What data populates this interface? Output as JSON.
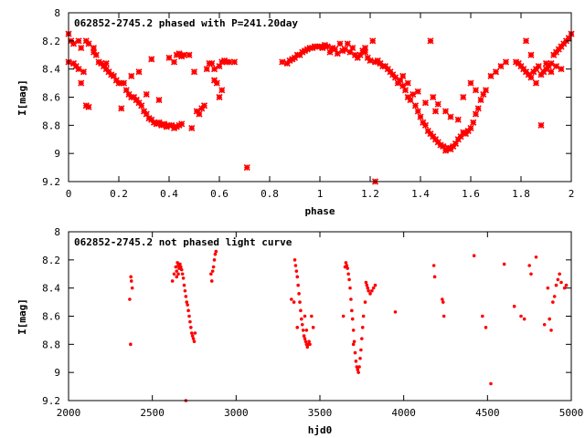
{
  "chart_data": [
    {
      "type": "scatter",
      "title": "062852-2745.2 phased with P=241.20day",
      "xlabel": "phase",
      "ylabel": "I[mag]",
      "xlim": [
        0,
        2
      ],
      "ylim": [
        9.2,
        8.0
      ],
      "y_inverted": true,
      "grid": false,
      "x_ticks": [
        "0",
        "0.2",
        "0.4",
        "0.6",
        "0.8",
        "1",
        "1.2",
        "1.4",
        "1.6",
        "1.8",
        "2"
      ],
      "y_ticks": [
        "8",
        "8.2",
        "8.4",
        "8.6",
        "8.8",
        "9",
        "9.2"
      ],
      "marker_color": "#ff0000",
      "marker": "star",
      "points": [
        [
          0.0,
          8.15
        ],
        [
          0.0,
          8.35
        ],
        [
          0.01,
          8.2
        ],
        [
          0.02,
          8.22
        ],
        [
          0.02,
          8.36
        ],
        [
          0.03,
          8.38
        ],
        [
          0.04,
          8.2
        ],
        [
          0.04,
          8.4
        ],
        [
          0.05,
          8.25
        ],
        [
          0.05,
          8.5
        ],
        [
          0.06,
          8.42
        ],
        [
          0.07,
          8.2
        ],
        [
          0.07,
          8.66
        ],
        [
          0.08,
          8.22
        ],
        [
          0.08,
          8.67
        ],
        [
          0.1,
          8.25
        ],
        [
          0.1,
          8.28
        ],
        [
          0.11,
          8.3
        ],
        [
          0.12,
          8.35
        ],
        [
          0.13,
          8.36
        ],
        [
          0.14,
          8.38
        ],
        [
          0.15,
          8.4
        ],
        [
          0.16,
          8.42
        ],
        [
          0.17,
          8.44
        ],
        [
          0.18,
          8.45
        ],
        [
          0.19,
          8.48
        ],
        [
          0.2,
          8.5
        ],
        [
          0.21,
          8.5
        ],
        [
          0.21,
          8.68
        ],
        [
          0.22,
          8.5
        ],
        [
          0.23,
          8.55
        ],
        [
          0.24,
          8.58
        ],
        [
          0.25,
          8.6
        ],
        [
          0.26,
          8.6
        ],
        [
          0.27,
          8.62
        ],
        [
          0.28,
          8.64
        ],
        [
          0.29,
          8.66
        ],
        [
          0.3,
          8.7
        ],
        [
          0.31,
          8.72
        ],
        [
          0.32,
          8.75
        ],
        [
          0.33,
          8.76
        ],
        [
          0.34,
          8.78
        ],
        [
          0.33,
          8.33
        ],
        [
          0.35,
          8.79
        ],
        [
          0.36,
          8.78
        ],
        [
          0.37,
          8.8
        ],
        [
          0.38,
          8.79
        ],
        [
          0.39,
          8.81
        ],
        [
          0.4,
          8.8
        ],
        [
          0.41,
          8.8
        ],
        [
          0.42,
          8.82
        ],
        [
          0.43,
          8.81
        ],
        [
          0.44,
          8.8
        ],
        [
          0.45,
          8.79
        ],
        [
          0.4,
          8.32
        ],
        [
          0.42,
          8.35
        ],
        [
          0.43,
          8.3
        ],
        [
          0.44,
          8.29
        ],
        [
          0.45,
          8.31
        ],
        [
          0.46,
          8.3
        ],
        [
          0.48,
          8.3
        ],
        [
          0.49,
          8.82
        ],
        [
          0.5,
          8.42
        ],
        [
          0.51,
          8.7
        ],
        [
          0.52,
          8.72
        ],
        [
          0.53,
          8.68
        ],
        [
          0.54,
          8.66
        ],
        [
          0.55,
          8.4
        ],
        [
          0.56,
          8.36
        ],
        [
          0.58,
          8.4
        ],
        [
          0.59,
          8.5
        ],
        [
          0.6,
          8.38
        ],
        [
          0.6,
          8.6
        ],
        [
          0.61,
          8.55
        ],
        [
          0.61,
          8.35
        ],
        [
          0.62,
          8.34
        ],
        [
          0.63,
          8.35
        ],
        [
          0.64,
          8.35
        ],
        [
          0.66,
          8.35
        ],
        [
          0.15,
          8.36
        ],
        [
          0.28,
          8.42
        ],
        [
          0.25,
          8.45
        ],
        [
          0.27,
          8.62
        ],
        [
          0.31,
          8.58
        ],
        [
          0.36,
          8.62
        ],
        [
          0.57,
          8.36
        ],
        [
          0.58,
          8.48
        ],
        [
          0.71,
          9.1
        ],
        [
          0.85,
          8.35
        ],
        [
          0.87,
          8.36
        ],
        [
          0.88,
          8.34
        ],
        [
          0.89,
          8.33
        ],
        [
          0.9,
          8.32
        ],
        [
          0.91,
          8.3
        ],
        [
          0.92,
          8.3
        ],
        [
          0.93,
          8.28
        ],
        [
          0.94,
          8.27
        ],
        [
          0.95,
          8.26
        ],
        [
          0.96,
          8.25
        ],
        [
          0.97,
          8.25
        ],
        [
          0.98,
          8.24
        ],
        [
          0.99,
          8.24
        ],
        [
          1.0,
          8.24
        ],
        [
          1.01,
          8.25
        ],
        [
          1.02,
          8.23
        ],
        [
          1.03,
          8.24
        ],
        [
          1.04,
          8.28
        ],
        [
          1.05,
          8.25
        ],
        [
          1.06,
          8.26
        ],
        [
          1.08,
          8.22
        ],
        [
          1.09,
          8.27
        ],
        [
          1.1,
          8.26
        ],
        [
          1.11,
          8.22
        ],
        [
          1.12,
          8.28
        ],
        [
          1.13,
          8.25
        ],
        [
          1.14,
          8.3
        ],
        [
          1.15,
          8.32
        ],
        [
          1.16,
          8.3
        ],
        [
          1.17,
          8.27
        ],
        [
          1.18,
          8.28
        ],
        [
          1.19,
          8.32
        ],
        [
          1.2,
          8.34
        ],
        [
          1.21,
          8.2
        ],
        [
          1.22,
          8.35
        ],
        [
          1.23,
          8.34
        ],
        [
          1.24,
          8.36
        ],
        [
          1.25,
          8.38
        ],
        [
          1.26,
          8.38
        ],
        [
          1.27,
          8.4
        ],
        [
          1.28,
          8.42
        ],
        [
          1.29,
          8.44
        ],
        [
          1.3,
          8.46
        ],
        [
          1.31,
          8.5
        ],
        [
          1.32,
          8.48
        ],
        [
          1.33,
          8.52
        ],
        [
          1.34,
          8.55
        ],
        [
          1.35,
          8.6
        ],
        [
          1.36,
          8.62
        ],
        [
          1.37,
          8.58
        ],
        [
          1.38,
          8.66
        ],
        [
          1.39,
          8.7
        ],
        [
          1.4,
          8.74
        ],
        [
          1.41,
          8.78
        ],
        [
          1.42,
          8.8
        ],
        [
          1.43,
          8.84
        ],
        [
          1.44,
          8.86
        ],
        [
          1.45,
          8.88
        ],
        [
          1.46,
          8.9
        ],
        [
          1.47,
          8.92
        ],
        [
          1.48,
          8.94
        ],
        [
          1.49,
          8.95
        ],
        [
          1.5,
          8.98
        ],
        [
          1.51,
          8.96
        ],
        [
          1.52,
          8.97
        ],
        [
          1.53,
          8.95
        ],
        [
          1.54,
          8.93
        ],
        [
          1.55,
          8.9
        ],
        [
          1.56,
          8.88
        ],
        [
          1.57,
          8.85
        ],
        [
          1.58,
          8.86
        ],
        [
          1.59,
          8.84
        ],
        [
          1.6,
          8.82
        ],
        [
          1.61,
          8.78
        ],
        [
          1.62,
          8.72
        ],
        [
          1.63,
          8.68
        ],
        [
          1.64,
          8.62
        ],
        [
          1.65,
          8.58
        ],
        [
          1.66,
          8.55
        ],
        [
          1.68,
          8.45
        ],
        [
          1.7,
          8.42
        ],
        [
          1.72,
          8.38
        ],
        [
          1.74,
          8.35
        ],
        [
          1.45,
          8.6
        ],
        [
          1.47,
          8.65
        ],
        [
          1.5,
          8.7
        ],
        [
          1.52,
          8.74
        ],
        [
          1.55,
          8.76
        ],
        [
          1.57,
          8.6
        ],
        [
          1.6,
          8.5
        ],
        [
          1.62,
          8.55
        ],
        [
          1.44,
          8.2
        ],
        [
          1.39,
          8.56
        ],
        [
          1.35,
          8.5
        ],
        [
          1.33,
          8.45
        ],
        [
          1.42,
          8.64
        ],
        [
          1.46,
          8.7
        ],
        [
          1.22,
          9.2
        ],
        [
          1.18,
          8.25
        ],
        [
          1.07,
          8.29
        ],
        [
          1.78,
          8.35
        ],
        [
          1.79,
          8.36
        ],
        [
          1.8,
          8.38
        ],
        [
          1.81,
          8.4
        ],
        [
          1.82,
          8.42
        ],
        [
          1.83,
          8.44
        ],
        [
          1.84,
          8.46
        ],
        [
          1.85,
          8.42
        ],
        [
          1.86,
          8.4
        ],
        [
          1.87,
          8.38
        ],
        [
          1.88,
          8.44
        ],
        [
          1.89,
          8.42
        ],
        [
          1.9,
          8.4
        ],
        [
          1.91,
          8.38
        ],
        [
          1.92,
          8.36
        ],
        [
          1.93,
          8.3
        ],
        [
          1.94,
          8.28
        ],
        [
          1.95,
          8.26
        ],
        [
          1.96,
          8.24
        ],
        [
          1.97,
          8.22
        ],
        [
          1.98,
          8.2
        ],
        [
          1.99,
          8.18
        ],
        [
          2.0,
          8.15
        ],
        [
          1.82,
          8.2
        ],
        [
          1.84,
          8.3
        ],
        [
          1.86,
          8.5
        ],
        [
          1.88,
          8.8
        ],
        [
          1.9,
          8.36
        ],
        [
          1.92,
          8.42
        ],
        [
          1.94,
          8.38
        ],
        [
          1.96,
          8.4
        ]
      ]
    },
    {
      "type": "scatter",
      "title": "062852-2745.2 not phased light curve",
      "xlabel": "hjd0",
      "ylabel": "I[mag]",
      "xlim": [
        2000,
        5000
      ],
      "ylim": [
        9.2,
        8.0
      ],
      "y_inverted": true,
      "grid": false,
      "x_ticks": [
        "2000",
        "2500",
        "3000",
        "3500",
        "4000",
        "4500",
        "5000"
      ],
      "y_ticks": [
        "8",
        "8.2",
        "8.4",
        "8.6",
        "8.8",
        "9",
        "9.2"
      ],
      "marker_color": "#ff0000",
      "marker": "dot",
      "points": [
        [
          2365,
          8.48
        ],
        [
          2370,
          8.8
        ],
        [
          2372,
          8.32
        ],
        [
          2375,
          8.35
        ],
        [
          2380,
          8.4
        ],
        [
          2620,
          8.35
        ],
        [
          2630,
          8.3
        ],
        [
          2640,
          8.25
        ],
        [
          2645,
          8.28
        ],
        [
          2650,
          8.22
        ],
        [
          2655,
          8.24
        ],
        [
          2660,
          8.26
        ],
        [
          2665,
          8.23
        ],
        [
          2670,
          8.25
        ],
        [
          2675,
          8.27
        ],
        [
          2680,
          8.3
        ],
        [
          2685,
          8.33
        ],
        [
          2690,
          8.38
        ],
        [
          2695,
          8.42
        ],
        [
          2700,
          8.46
        ],
        [
          2705,
          8.5
        ],
        [
          2710,
          8.52
        ],
        [
          2715,
          8.56
        ],
        [
          2720,
          8.6
        ],
        [
          2725,
          8.64
        ],
        [
          2730,
          8.68
        ],
        [
          2735,
          8.72
        ],
        [
          2740,
          8.74
        ],
        [
          2745,
          8.76
        ],
        [
          2750,
          8.78
        ],
        [
          2755,
          8.72
        ],
        [
          2645,
          8.32
        ],
        [
          2655,
          8.3
        ],
        [
          2700,
          9.2
        ],
        [
          2850,
          8.3
        ],
        [
          2855,
          8.35
        ],
        [
          2860,
          8.28
        ],
        [
          2865,
          8.25
        ],
        [
          2870,
          8.2
        ],
        [
          2875,
          8.16
        ],
        [
          2880,
          8.14
        ],
        [
          3330,
          8.48
        ],
        [
          3345,
          8.5
        ],
        [
          3350,
          8.2
        ],
        [
          3355,
          8.24
        ],
        [
          3360,
          8.28
        ],
        [
          3365,
          8.32
        ],
        [
          3370,
          8.38
        ],
        [
          3375,
          8.44
        ],
        [
          3380,
          8.5
        ],
        [
          3385,
          8.56
        ],
        [
          3390,
          8.62
        ],
        [
          3395,
          8.66
        ],
        [
          3400,
          8.7
        ],
        [
          3405,
          8.74
        ],
        [
          3410,
          8.76
        ],
        [
          3415,
          8.78
        ],
        [
          3420,
          8.8
        ],
        [
          3425,
          8.82
        ],
        [
          3430,
          8.8
        ],
        [
          3435,
          8.78
        ],
        [
          3440,
          8.8
        ],
        [
          3450,
          8.6
        ],
        [
          3460,
          8.68
        ],
        [
          3365,
          8.68
        ],
        [
          3410,
          8.6
        ],
        [
          3420,
          8.7
        ],
        [
          3650,
          8.25
        ],
        [
          3655,
          8.22
        ],
        [
          3660,
          8.24
        ],
        [
          3665,
          8.26
        ],
        [
          3670,
          8.3
        ],
        [
          3675,
          8.34
        ],
        [
          3680,
          8.4
        ],
        [
          3685,
          8.48
        ],
        [
          3690,
          8.56
        ],
        [
          3695,
          8.62
        ],
        [
          3700,
          8.7
        ],
        [
          3705,
          8.78
        ],
        [
          3710,
          8.86
        ],
        [
          3715,
          8.92
        ],
        [
          3720,
          8.96
        ],
        [
          3725,
          8.98
        ],
        [
          3730,
          9.0
        ],
        [
          3735,
          8.96
        ],
        [
          3740,
          8.9
        ],
        [
          3745,
          8.84
        ],
        [
          3750,
          8.76
        ],
        [
          3755,
          8.68
        ],
        [
          3760,
          8.6
        ],
        [
          3770,
          8.5
        ],
        [
          3775,
          8.36
        ],
        [
          3780,
          8.38
        ],
        [
          3785,
          8.4
        ],
        [
          3790,
          8.42
        ],
        [
          3800,
          8.44
        ],
        [
          3810,
          8.42
        ],
        [
          3820,
          8.4
        ],
        [
          3830,
          8.38
        ],
        [
          3640,
          8.6
        ],
        [
          3700,
          8.8
        ],
        [
          3950,
          8.57
        ],
        [
          4180,
          8.24
        ],
        [
          4185,
          8.32
        ],
        [
          4230,
          8.48
        ],
        [
          4235,
          8.5
        ],
        [
          4240,
          8.6
        ],
        [
          4420,
          8.17
        ],
        [
          4470,
          8.6
        ],
        [
          4490,
          8.68
        ],
        [
          4520,
          9.08
        ],
        [
          4600,
          8.23
        ],
        [
          4660,
          8.53
        ],
        [
          4700,
          8.6
        ],
        [
          4720,
          8.62
        ],
        [
          4750,
          8.24
        ],
        [
          4760,
          8.3
        ],
        [
          4790,
          8.18
        ],
        [
          4840,
          8.66
        ],
        [
          4860,
          8.4
        ],
        [
          4870,
          8.62
        ],
        [
          4880,
          8.7
        ],
        [
          4890,
          8.5
        ],
        [
          4900,
          8.46
        ],
        [
          4910,
          8.38
        ],
        [
          4920,
          8.34
        ],
        [
          4930,
          8.3
        ],
        [
          4940,
          8.36
        ],
        [
          4960,
          8.4
        ],
        [
          4970,
          8.38
        ]
      ]
    }
  ]
}
